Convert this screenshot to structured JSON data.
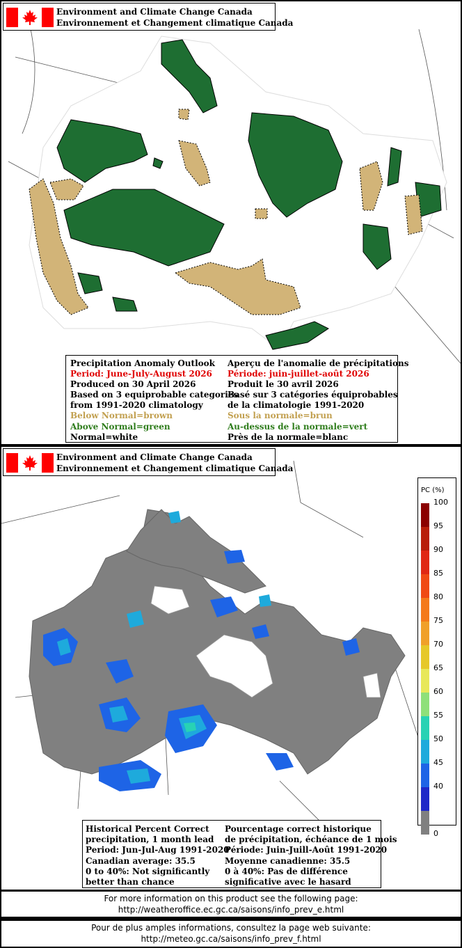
{
  "header": {
    "line1": "Environment and Climate Change Canada",
    "line2": "Environnement et Changement climatique Canada"
  },
  "colors": {
    "flag_red": "#ff0000",
    "above_normal_green": "#1e6e32",
    "below_normal_brown": "#d2b478",
    "normal_white": "#ffffff",
    "pc_grey": "#808080"
  },
  "outlook_legend": {
    "en": {
      "title": "Precipitation Anomaly Outlook",
      "period": "Period: June-July-August 2026",
      "produced": "Produced on 30 April 2026",
      "based1": "Based on 3 equiprobable categories",
      "based2": "from 1991-2020 climatology",
      "below": "Below Normal=brown",
      "above": "Above Normal=green",
      "normal": "Normal=white"
    },
    "fr": {
      "title": "Aperçu de l'anomalie de précipitations",
      "period": "Période: juin-juillet-août 2026",
      "produced": "Produit le 30 avril 2026",
      "based1": "Basé sur 3 catégories équiprobables",
      "based2": "de la climatologie 1991-2020",
      "below": "Sous la normale=brun",
      "above": "Au-dessus de la normale=vert",
      "normal": "Près de la normale=blanc"
    }
  },
  "skill_legend": {
    "en": {
      "line1": "Historical Percent Correct",
      "line2": "precipitation, 1 month lead",
      "line3": "Period: Jun-Jul-Aug 1991-2020",
      "line4": "Canadian average: 35.5",
      "line5": "0 to 40%: Not significantly",
      "line6": "better than chance"
    },
    "fr": {
      "line1": "Pourcentage correct historique",
      "line2": "de précipitation, échéance de 1 mois",
      "line3": "Période: Juin-Juill-Août 1991-2020",
      "line4": "Moyenne canadienne: 35.5",
      "line5": "0 à 40%: Pas de différence",
      "line6": "significative avec le hasard"
    }
  },
  "colorbar": {
    "title": "PC (%)",
    "ticks": [
      "100",
      "95",
      "90",
      "85",
      "80",
      "75",
      "70",
      "65",
      "60",
      "55",
      "50",
      "45",
      "40",
      "0"
    ],
    "colors": [
      "#8b0000",
      "#b81e0a",
      "#e02814",
      "#f04a14",
      "#f47a1a",
      "#f0a02a",
      "#e6c82a",
      "#e8e85a",
      "#8ee07a",
      "#28d2b4",
      "#1eaadc",
      "#1e64e6",
      "#1e28c8",
      "#808080"
    ]
  },
  "footer": {
    "en1": "For more information on this product see the following page:",
    "en2": "http://weatheroffice.ec.gc.ca/saisons/info_prev_e.html",
    "fr1": "Pour de plus amples informations, consultez la page web suivante:",
    "fr2": "http://meteo.gc.ca/saisons/info_prev_f.html"
  }
}
